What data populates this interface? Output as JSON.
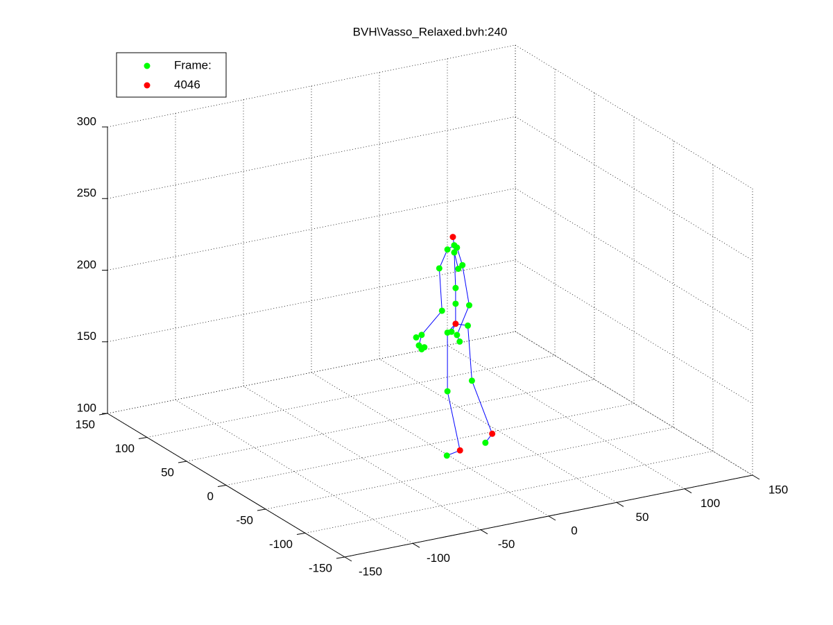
{
  "chart_data": {
    "type": "scatter3d",
    "title": "BVH\\Vasso_Relaxed.bvh:240",
    "xlim": [
      -150,
      150
    ],
    "xticks": [
      -150,
      -100,
      -50,
      0,
      50,
      100,
      150
    ],
    "ylim": [
      -150,
      150
    ],
    "yticks": [
      -150,
      -100,
      -50,
      0,
      50,
      100,
      150
    ],
    "zlim": [
      100,
      300
    ],
    "zticks": [
      100,
      150,
      200,
      250,
      300
    ],
    "grid": true,
    "legend": "upper left",
    "series": [
      {
        "name": "Frame:",
        "color": "#00ff00",
        "x": [
          7,
          12,
          14,
          12,
          1,
          15,
          18,
          13,
          3,
          13,
          23,
          22,
          7,
          10,
          14,
          16,
          25,
          7,
          -16,
          -12,
          -14,
          -12,
          -10,
          -1,
          32
        ],
        "y": [
          -10,
          -10,
          -10,
          -10,
          -10,
          -10,
          -10,
          -10,
          -10,
          -10,
          -10,
          -10,
          -10,
          -10,
          -10,
          -10,
          -10,
          -10,
          -10,
          -10,
          -10,
          -10,
          -10,
          -23,
          -15
        ],
        "z": [
          238,
          240,
          238,
          235,
          226,
          223,
          225,
          210,
          196,
          199,
          196,
          182,
          180,
          180,
          177,
          172,
          143,
          139,
          181,
          182,
          175,
          172,
          173,
          100,
          100
        ]
      },
      {
        "name": "4046",
        "color": "#ff0000",
        "x": [
          11,
          13,
          11,
          44
        ],
        "y": [
          -10,
          -10,
          -19,
          -3
        ],
        "z": [
          246,
          185,
          100,
          100
        ]
      }
    ]
  }
}
